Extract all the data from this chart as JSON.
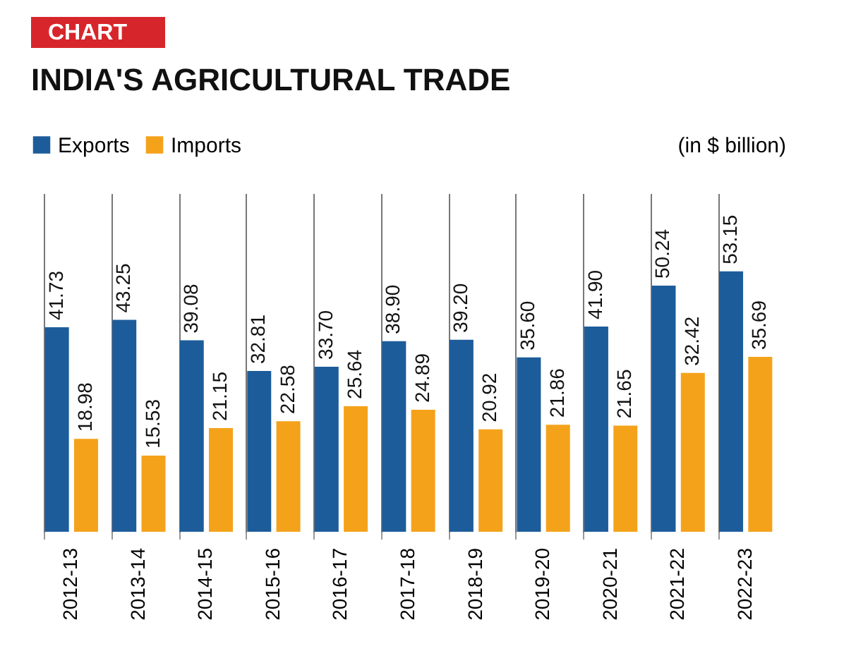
{
  "chart_data": {
    "type": "bar",
    "title": "INDIA'S AGRICULTURAL TRADE",
    "annotations": [
      "CHART",
      "(in $ billion)"
    ],
    "categories": [
      "2012-13",
      "2013-14",
      "2014-15",
      "2015-16",
      "2016-17",
      "2017-18",
      "2018-19",
      "2019-20",
      "2020-21",
      "2021-22",
      "2022-23"
    ],
    "series": [
      {
        "name": "Exports",
        "color": "#1d5c9a",
        "values": [
          41.73,
          43.25,
          39.08,
          32.81,
          33.7,
          38.9,
          39.2,
          35.6,
          41.9,
          50.24,
          53.15
        ],
        "value_labels": [
          "41.73",
          "43.25",
          "39.08",
          "32.81",
          "33.70",
          "38.90",
          "39.20",
          "35.60",
          "41.90",
          "50.24",
          "53.15"
        ]
      },
      {
        "name": "Imports",
        "color": "#f5a21b",
        "values": [
          18.98,
          15.53,
          21.15,
          22.58,
          25.64,
          24.89,
          20.92,
          21.86,
          21.65,
          32.42,
          35.69
        ],
        "value_labels": [
          "18.98",
          "15.53",
          "21.15",
          "22.58",
          "25.64",
          "24.89",
          "20.92",
          "21.86",
          "21.65",
          "32.42",
          "35.69"
        ]
      }
    ],
    "legend": "top left",
    "grid": "x"
  }
}
